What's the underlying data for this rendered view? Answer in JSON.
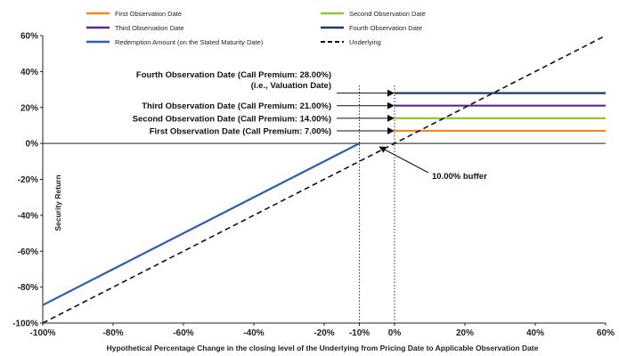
{
  "chart_data": {
    "type": "line",
    "title": "",
    "xlabel": "Hypothetical Percentage Change in the closing level of the Underlying from Pricing Date to Applicable Observation Date",
    "ylabel": "Security Return",
    "xlim": [
      -100,
      60
    ],
    "ylim": [
      -100,
      60
    ],
    "x_ticks": [
      {
        "value": -100,
        "label": "-100%"
      },
      {
        "value": -80,
        "label": "-80%"
      },
      {
        "value": -60,
        "label": "-60%"
      },
      {
        "value": -40,
        "label": "-40%"
      },
      {
        "value": -20,
        "label": "-20%"
      },
      {
        "value": -10,
        "label": "-10%"
      },
      {
        "value": 0,
        "label": "0%"
      },
      {
        "value": 20,
        "label": "20%"
      },
      {
        "value": 40,
        "label": "40%"
      },
      {
        "value": 60,
        "label": "60%"
      }
    ],
    "y_ticks": [
      {
        "value": 60,
        "label": "60%"
      },
      {
        "value": 40,
        "label": "40%"
      },
      {
        "value": 20,
        "label": "20%"
      },
      {
        "value": 0,
        "label": "0%"
      },
      {
        "value": -20,
        "label": "-20%"
      },
      {
        "value": -40,
        "label": "-40%"
      },
      {
        "value": -60,
        "label": "-60%"
      },
      {
        "value": -80,
        "label": "-80%"
      },
      {
        "value": -100,
        "label": "-100%"
      }
    ],
    "legend": [
      {
        "label": "First Observation Date",
        "color": "#f08a24",
        "style": "solid"
      },
      {
        "label": "Second Observation Date",
        "color": "#8dc63f",
        "style": "solid"
      },
      {
        "label": "Third Observation Date",
        "color": "#5b2a86",
        "style": "solid"
      },
      {
        "label": "Fourth Observation Date",
        "color": "#1f3864",
        "style": "solid"
      },
      {
        "label": "Redemption Amount (on the Stated Maturity Date)",
        "color": "#2e5fa8",
        "style": "solid"
      },
      {
        "label": "Underlying",
        "color": "#111111",
        "style": "dashed"
      }
    ],
    "series": [
      {
        "name": "First Observation Date",
        "color": "#f08a24",
        "x": [
          0,
          60
        ],
        "y": [
          7,
          7
        ]
      },
      {
        "name": "Second Observation Date",
        "color": "#8dc63f",
        "x": [
          0,
          60
        ],
        "y": [
          14,
          14
        ]
      },
      {
        "name": "Third Observation Date",
        "color": "#5b2a86",
        "x": [
          0,
          60
        ],
        "y": [
          21,
          21
        ]
      },
      {
        "name": "Fourth Observation Date",
        "color": "#1f3864",
        "x": [
          0,
          60
        ],
        "y": [
          28,
          28
        ]
      },
      {
        "name": "Redemption Amount (on the Stated Maturity Date)",
        "color": "#2e5fa8",
        "x": [
          -100,
          -10
        ],
        "y": [
          -90,
          0
        ]
      },
      {
        "name": "Underlying",
        "color": "#111111",
        "dashed": true,
        "x": [
          -100,
          60
        ],
        "y": [
          -100,
          60
        ]
      }
    ],
    "reference_lines": [
      {
        "axis": "x",
        "value": -10
      },
      {
        "axis": "x",
        "value": 0
      }
    ],
    "annotations": [
      {
        "lines": [
          "Fourth Observation Date (Call Premium: 28.00%)",
          "(i.e., Valuation Date)"
        ],
        "target_y": 28
      },
      {
        "lines": [
          "Third Observation Date (Call Premium: 21.00%)"
        ],
        "target_y": 21
      },
      {
        "lines": [
          "Second Observation Date (Call Premium: 14.00%)"
        ],
        "target_y": 14
      },
      {
        "lines": [
          "First Observation Date (Call Premium: 7.00%)"
        ],
        "target_y": 7
      },
      {
        "lines": [
          "10.00% buffer"
        ],
        "target_x": -5,
        "target_y": 0
      }
    ],
    "grid": false,
    "legend_position": "top"
  }
}
